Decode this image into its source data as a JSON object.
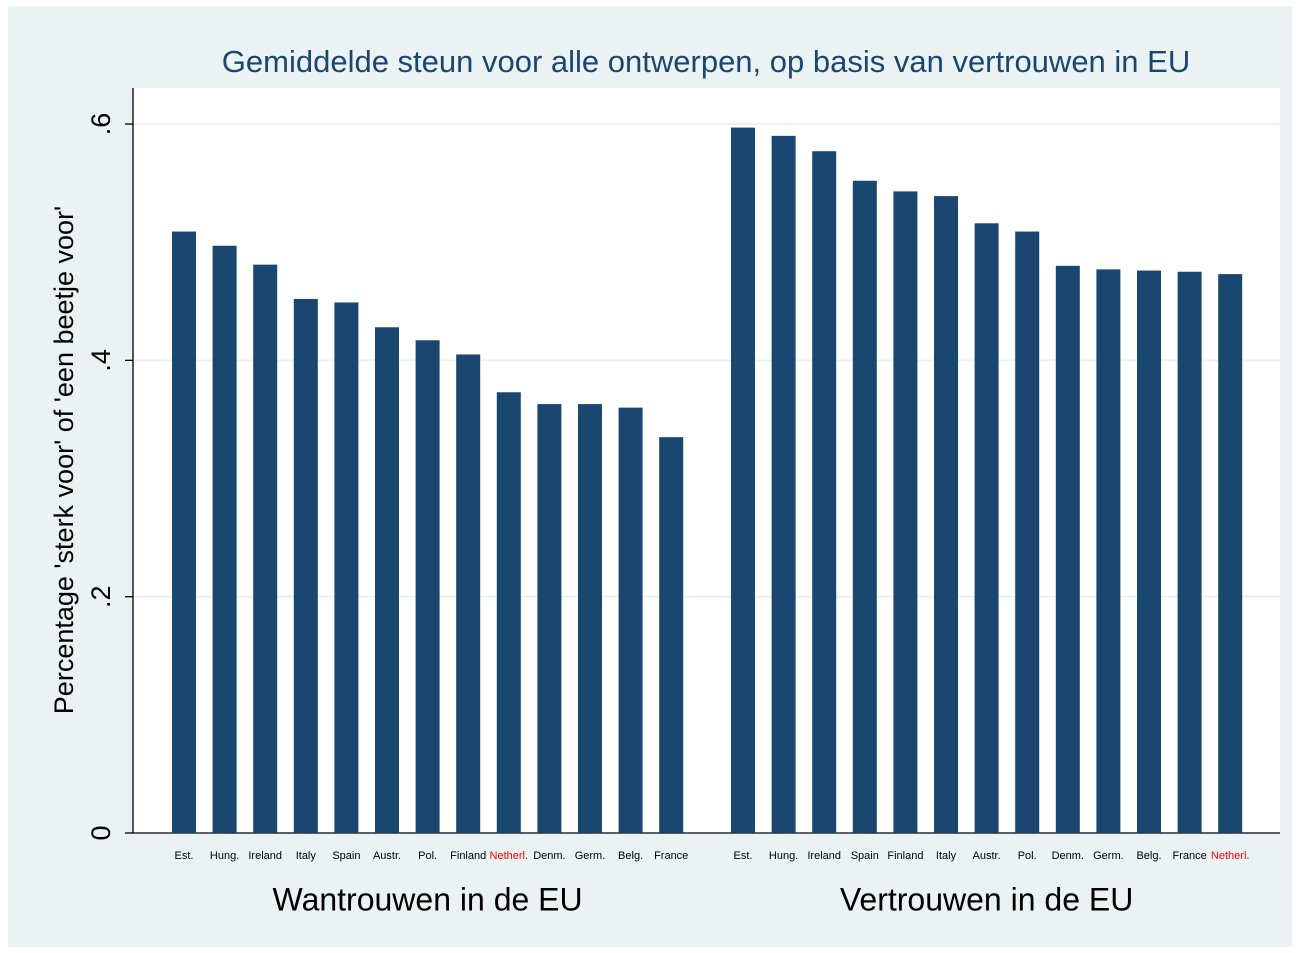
{
  "chart_data": {
    "type": "bar",
    "title": "Gemiddelde steun voor alle ontwerpen, op basis van vertrouwen in EU",
    "y_label": "Percentage 'sterk voor' of 'een beetje voor'",
    "color": "#1a476f",
    "highlight_label": "Netherl.",
    "highlight_color": "#ff0000",
    "groups": [
      {
        "name": "Wantrouwen in de EU",
        "categories": [
          "Est.",
          "Hung.",
          "Ireland",
          "Italy",
          "Spain",
          "Austr.",
          "Pol.",
          "Finland",
          "Netherl.",
          "Denm.",
          "Germ.",
          "Belg.",
          "France"
        ],
        "values": [
          0.509,
          0.497,
          0.481,
          0.452,
          0.449,
          0.428,
          0.417,
          0.405,
          0.373,
          0.363,
          0.363,
          0.36,
          0.335
        ]
      },
      {
        "name": "Vertrouwen in de EU",
        "categories": [
          "Est.",
          "Hung.",
          "Ireland",
          "Spain",
          "Finland",
          "Italy",
          "Austr.",
          "Pol.",
          "Denm.",
          "Germ.",
          "Belg.",
          "France",
          "Netherl."
        ],
        "values": [
          0.597,
          0.59,
          0.577,
          0.552,
          0.543,
          0.539,
          0.516,
          0.509,
          0.48,
          0.477,
          0.476,
          0.475,
          0.473
        ]
      }
    ],
    "ylim": [
      0,
      0.6305
    ],
    "yticks": [
      0,
      {
        "value": 0.2,
        "label": ".2"
      },
      {
        "value": 0.4,
        "label": ".4"
      },
      {
        "value": 0.6,
        "label": ".6"
      }
    ],
    "grid": true
  }
}
